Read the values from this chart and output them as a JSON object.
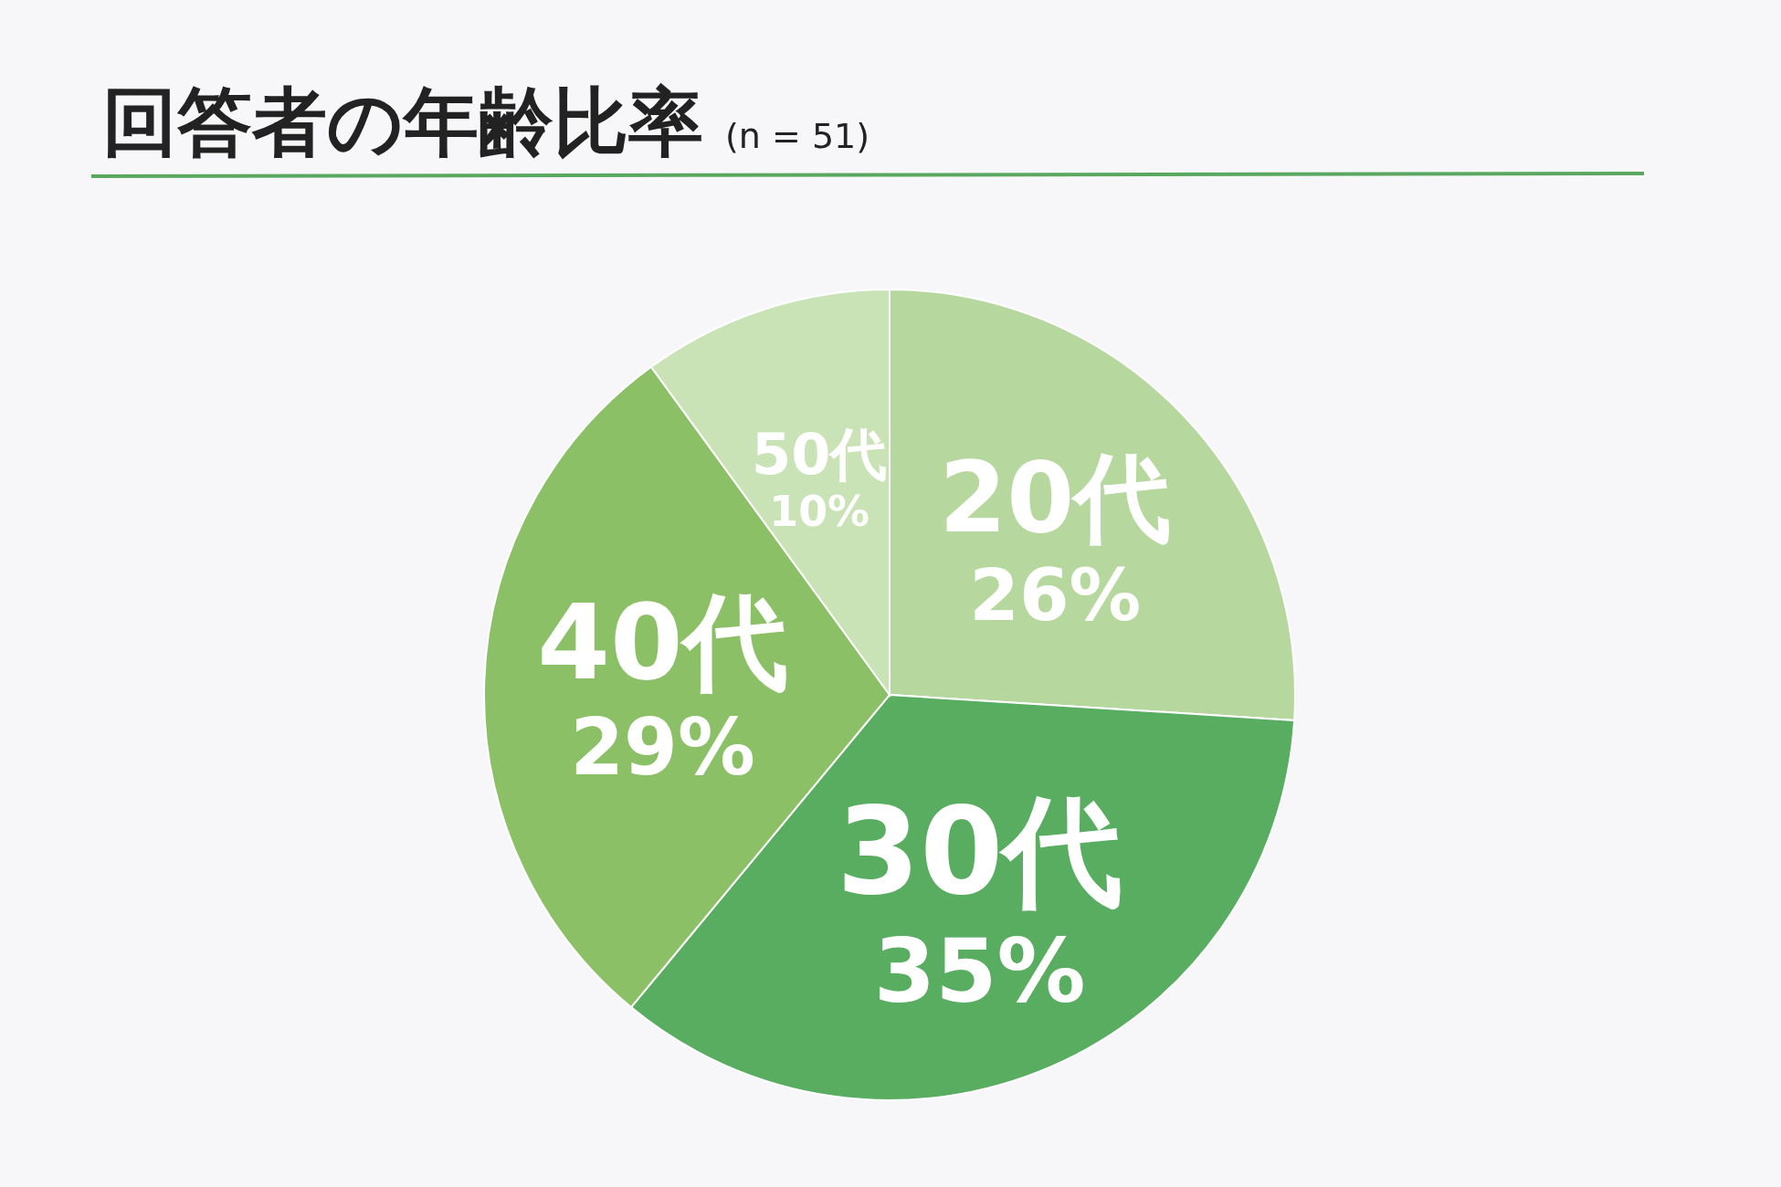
{
  "chart_data": {
    "type": "pie",
    "title": "回答者の年齢比率",
    "subtitle": "(n = 51)",
    "categories": [
      "20代",
      "30代",
      "40代",
      "50代"
    ],
    "values": [
      26,
      35,
      29,
      10
    ],
    "colors": [
      "#b6d89e",
      "#58ad60",
      "#8cc066",
      "#c9e3b6"
    ],
    "value_labels": [
      "26%",
      "35%",
      "29%",
      "10%"
    ]
  }
}
